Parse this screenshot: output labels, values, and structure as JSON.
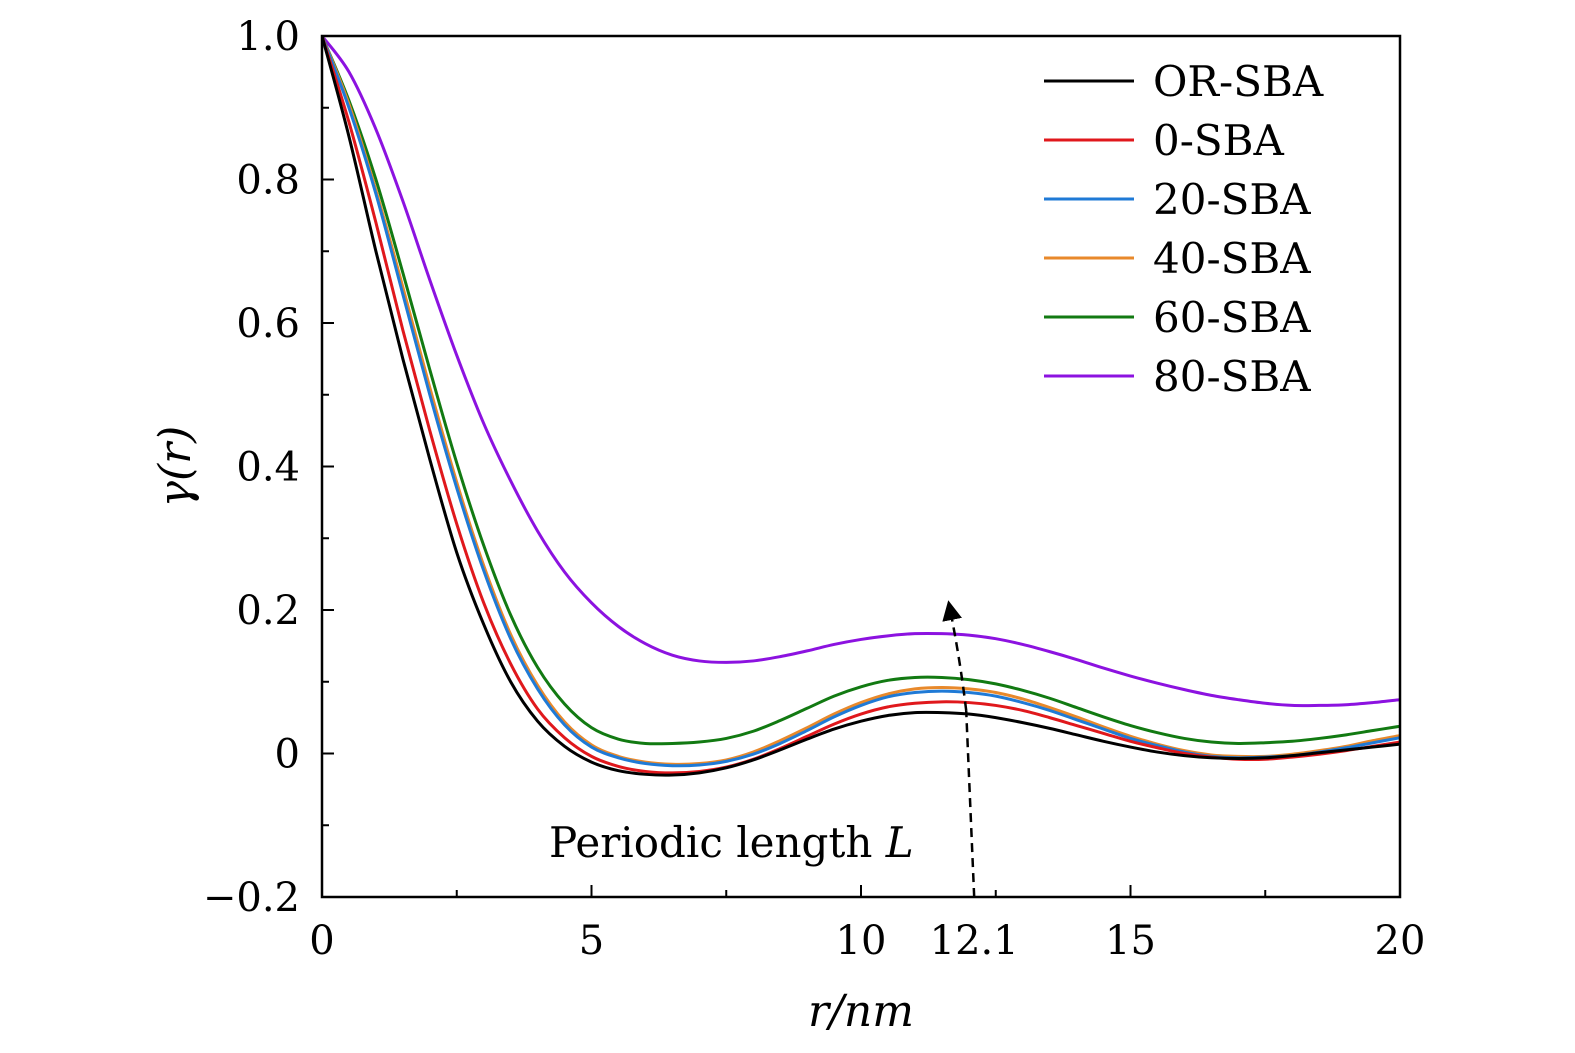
{
  "chart_data": {
    "type": "line",
    "title": "",
    "xlabel": "r/nm",
    "ylabel": "γ(r)",
    "xlim": [
      0,
      20
    ],
    "ylim": [
      -0.2,
      1.0
    ],
    "x_ticks": [
      0,
      5,
      10,
      12.1,
      15,
      20
    ],
    "x_tick_labels": [
      "0",
      "5",
      "10",
      "12.1",
      "15",
      "20"
    ],
    "y_ticks": [
      -0.2,
      0,
      0.2,
      0.4,
      0.6,
      0.8,
      1.0
    ],
    "y_tick_labels": [
      "−0.2",
      "0",
      "0.2",
      "0.4",
      "0.6",
      "0.8",
      "1.0"
    ],
    "grid": false,
    "legend_position": "top-right",
    "x": [
      0,
      0.5,
      1,
      1.5,
      2,
      2.5,
      3,
      3.5,
      4,
      4.5,
      5,
      5.5,
      6,
      6.5,
      7,
      7.5,
      8,
      8.5,
      9,
      9.5,
      10,
      10.5,
      11,
      11.5,
      12,
      12.5,
      13,
      13.5,
      14,
      14.5,
      15,
      15.5,
      16,
      16.5,
      17,
      17.5,
      18,
      18.5,
      19,
      19.5,
      20
    ],
    "series": [
      {
        "name": "OR-SBA",
        "color": "#000000",
        "values": [
          1.0,
          0.86,
          0.7,
          0.55,
          0.41,
          0.28,
          0.18,
          0.1,
          0.045,
          0.01,
          -0.012,
          -0.024,
          -0.029,
          -0.03,
          -0.027,
          -0.02,
          -0.009,
          0.005,
          0.02,
          0.034,
          0.045,
          0.053,
          0.057,
          0.057,
          0.055,
          0.05,
          0.043,
          0.035,
          0.026,
          0.017,
          0.009,
          0.002,
          -0.003,
          -0.006,
          -0.007,
          -0.006,
          -0.003,
          0.001,
          0.005,
          0.009,
          0.013
        ]
      },
      {
        "name": "0-SBA",
        "color": "#e0181c",
        "values": [
          1.0,
          0.88,
          0.74,
          0.59,
          0.45,
          0.32,
          0.21,
          0.125,
          0.062,
          0.022,
          -0.004,
          -0.018,
          -0.025,
          -0.027,
          -0.025,
          -0.019,
          -0.008,
          0.007,
          0.024,
          0.041,
          0.055,
          0.065,
          0.07,
          0.072,
          0.071,
          0.067,
          0.06,
          0.05,
          0.039,
          0.028,
          0.017,
          0.008,
          0.0,
          -0.005,
          -0.008,
          -0.008,
          -0.005,
          -0.001,
          0.004,
          0.01,
          0.016
        ]
      },
      {
        "name": "20-SBA",
        "color": "#1f7ad6",
        "values": [
          1.0,
          0.9,
          0.78,
          0.64,
          0.5,
          0.37,
          0.255,
          0.16,
          0.09,
          0.04,
          0.009,
          -0.006,
          -0.014,
          -0.017,
          -0.016,
          -0.011,
          -0.001,
          0.014,
          0.032,
          0.051,
          0.067,
          0.079,
          0.085,
          0.087,
          0.085,
          0.08,
          0.071,
          0.06,
          0.047,
          0.034,
          0.021,
          0.011,
          0.002,
          -0.004,
          -0.006,
          -0.005,
          -0.003,
          0.002,
          0.008,
          0.015,
          0.022
        ]
      },
      {
        "name": "40-SBA",
        "color": "#e8892b",
        "values": [
          1.0,
          0.905,
          0.785,
          0.65,
          0.51,
          0.378,
          0.262,
          0.166,
          0.095,
          0.044,
          0.012,
          -0.004,
          -0.012,
          -0.015,
          -0.014,
          -0.009,
          0.002,
          0.018,
          0.036,
          0.055,
          0.071,
          0.083,
          0.09,
          0.092,
          0.09,
          0.085,
          0.076,
          0.064,
          0.051,
          0.037,
          0.024,
          0.013,
          0.004,
          -0.002,
          -0.004,
          -0.004,
          -0.001,
          0.004,
          0.01,
          0.018,
          0.025
        ]
      },
      {
        "name": "60-SBA",
        "color": "#127a12",
        "values": [
          1.0,
          0.91,
          0.8,
          0.67,
          0.535,
          0.405,
          0.29,
          0.193,
          0.12,
          0.069,
          0.036,
          0.02,
          0.014,
          0.014,
          0.016,
          0.021,
          0.031,
          0.046,
          0.063,
          0.08,
          0.093,
          0.102,
          0.106,
          0.106,
          0.103,
          0.097,
          0.088,
          0.077,
          0.064,
          0.051,
          0.039,
          0.029,
          0.021,
          0.016,
          0.014,
          0.015,
          0.017,
          0.021,
          0.026,
          0.032,
          0.038
        ]
      },
      {
        "name": "80-SBA",
        "color": "#8c12e0",
        "values": [
          1.0,
          0.95,
          0.87,
          0.77,
          0.66,
          0.555,
          0.46,
          0.38,
          0.31,
          0.253,
          0.21,
          0.177,
          0.153,
          0.137,
          0.129,
          0.127,
          0.129,
          0.135,
          0.143,
          0.152,
          0.159,
          0.164,
          0.167,
          0.167,
          0.165,
          0.16,
          0.152,
          0.142,
          0.131,
          0.119,
          0.108,
          0.098,
          0.089,
          0.081,
          0.075,
          0.07,
          0.067,
          0.067,
          0.068,
          0.071,
          0.075
        ]
      }
    ],
    "annotations": [
      {
        "text_plain": "Periodic length ",
        "text_italic": "L",
        "x_marker": 12.1,
        "arrow": "dashed, from baseline at x=12.1 up through curve peaks to y≈0.23"
      }
    ]
  }
}
